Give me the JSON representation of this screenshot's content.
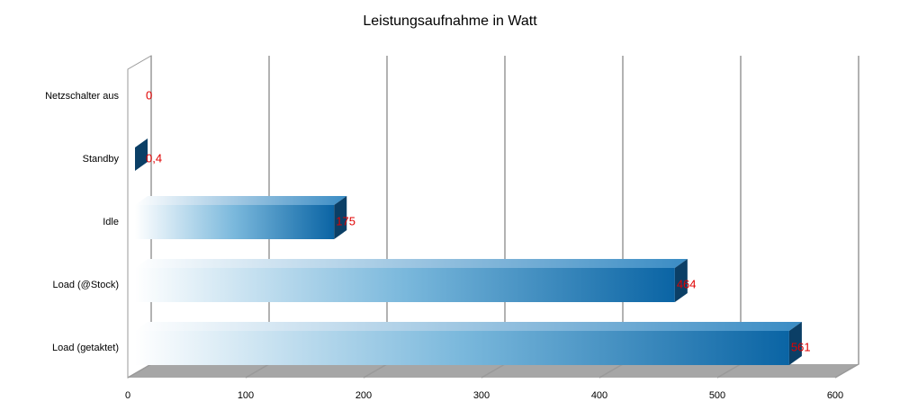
{
  "chart_data": {
    "type": "bar",
    "orientation": "horizontal",
    "title": "Leistungsaufnahme in Watt",
    "categories": [
      "Netzschalter aus",
      "Standby",
      "Idle",
      "Load (@Stock)",
      "Load (getaktet)"
    ],
    "values": [
      0,
      0.4,
      175,
      464,
      561
    ],
    "value_labels": [
      "0",
      "0,4",
      "175",
      "464",
      "561"
    ],
    "color": "#0a64a4",
    "xlim": [
      0,
      600
    ],
    "xticks": [
      0,
      100,
      200,
      300,
      400,
      500,
      600
    ],
    "grid": true
  }
}
